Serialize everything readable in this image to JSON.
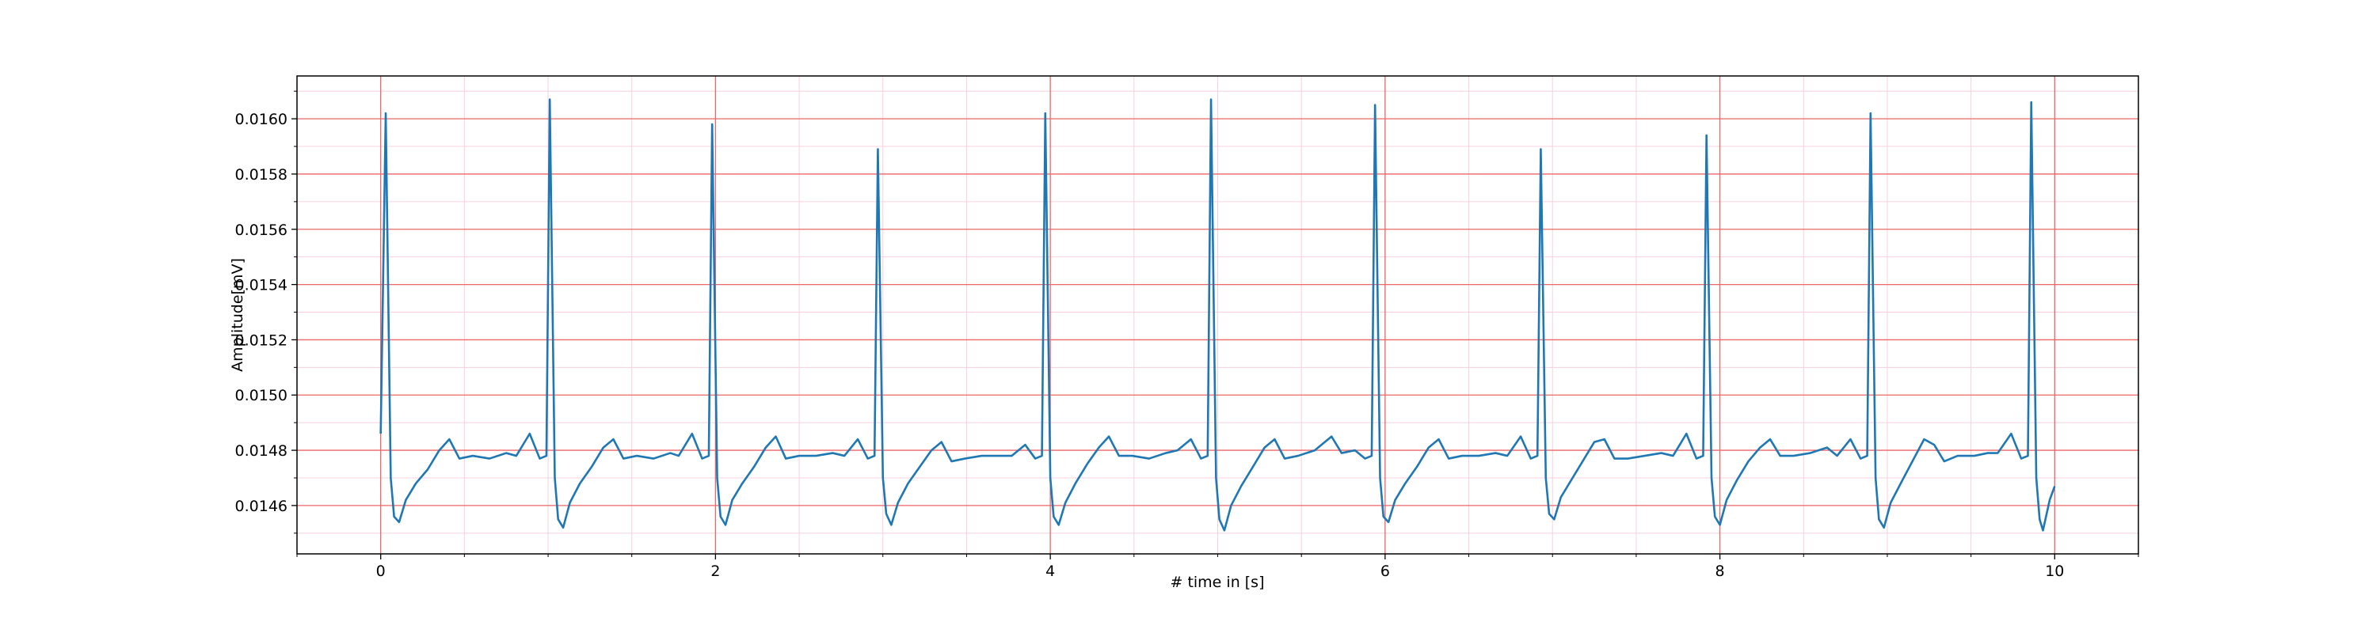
{
  "chart_data": {
    "type": "line",
    "xlabel": "# time in [s]",
    "ylabel": "Amplitude[mV]",
    "color": "#1f77b4",
    "xlim": [
      -0.5,
      10.5
    ],
    "ylim": [
      0.014425,
      0.016155
    ],
    "xticks": [
      0,
      2,
      4,
      6,
      8,
      10
    ],
    "yticks": [
      0.0146,
      0.0148,
      {
        "value": 0.015,
        "label": "0.0150"
      },
      0.0152,
      0.0154,
      0.0156,
      0.0158,
      {
        "value": 0.016,
        "label": "0.0160"
      }
    ],
    "xminorticks": [
      -0.5,
      0.5,
      1,
      1.5,
      2.5,
      3,
      3.5,
      4.5,
      5,
      5.5,
      6.5,
      7,
      7.5,
      8.5,
      9,
      9.5,
      10.5
    ],
    "yminorticks": [
      0.0145,
      0.0147,
      0.0149,
      0.0151,
      0.0153,
      0.0155,
      0.0157,
      0.0159,
      0.0161
    ],
    "grid": true,
    "minor_grid": true,
    "grid_color": "#ee6666",
    "minor_grid_color": "#f8d0dc",
    "x": [
      0,
      0.03,
      0.06,
      0.08,
      0.11,
      0.15,
      0.21,
      0.28,
      0.35,
      0.41,
      0.47,
      0.55,
      0.65,
      0.75,
      0.81,
      0.89,
      0.95,
      0.99,
      1.01,
      1.04,
      1.06,
      1.09,
      1.13,
      1.19,
      1.26,
      1.33,
      1.39,
      1.45,
      1.53,
      1.63,
      1.73,
      1.78,
      1.86,
      1.92,
      1.96,
      1.98,
      2.01,
      2.03,
      2.06,
      2.1,
      2.16,
      2.23,
      2.3,
      2.36,
      2.42,
      2.5,
      2.6,
      2.7,
      2.77,
      2.85,
      2.91,
      2.95,
      2.97,
      3.0,
      3.02,
      3.05,
      3.09,
      3.15,
      3.22,
      3.29,
      3.35,
      3.41,
      3.49,
      3.59,
      3.69,
      3.77,
      3.85,
      3.91,
      3.95,
      3.97,
      4.0,
      4.02,
      4.05,
      4.09,
      4.15,
      4.22,
      4.29,
      4.35,
      4.41,
      4.49,
      4.59,
      4.69,
      4.76,
      4.84,
      4.9,
      4.94,
      4.96,
      4.99,
      5.01,
      5.04,
      5.08,
      5.14,
      5.21,
      5.28,
      5.34,
      5.4,
      5.48,
      5.58,
      5.68,
      5.74,
      5.82,
      5.88,
      5.92,
      5.94,
      5.97,
      5.99,
      6.02,
      6.06,
      6.12,
      6.19,
      6.26,
      6.32,
      6.38,
      6.46,
      6.56,
      6.66,
      6.73,
      6.81,
      6.87,
      6.91,
      6.93,
      6.96,
      6.98,
      7.01,
      7.05,
      7.11,
      7.18,
      7.25,
      7.31,
      7.37,
      7.45,
      7.55,
      7.65,
      7.72,
      7.8,
      7.86,
      7.9,
      7.92,
      7.95,
      7.97,
      8.0,
      8.04,
      8.1,
      8.17,
      8.24,
      8.3,
      8.36,
      8.44,
      8.54,
      8.64,
      8.7,
      8.78,
      8.84,
      8.88,
      8.9,
      8.93,
      8.95,
      8.98,
      9.02,
      9.08,
      9.15,
      9.22,
      9.28,
      9.34,
      9.42,
      9.52,
      9.6,
      9.66,
      9.74,
      9.8,
      9.84,
      9.86,
      9.89,
      9.91,
      9.93,
      9.97,
      10.0
    ],
    "values": [
      0.01486,
      0.01602,
      0.0147,
      0.01456,
      0.01454,
      0.01462,
      0.01468,
      0.01473,
      0.0148,
      0.01484,
      0.01477,
      0.01478,
      0.01477,
      0.01479,
      0.01478,
      0.01486,
      0.01477,
      0.01478,
      0.01607,
      0.0147,
      0.01455,
      0.01452,
      0.01461,
      0.01468,
      0.01474,
      0.01481,
      0.01484,
      0.01477,
      0.01478,
      0.01477,
      0.01479,
      0.01478,
      0.01486,
      0.01477,
      0.01478,
      0.01598,
      0.0147,
      0.01456,
      0.01453,
      0.01462,
      0.01468,
      0.01474,
      0.01481,
      0.01485,
      0.01477,
      0.01478,
      0.01478,
      0.01479,
      0.01478,
      0.01484,
      0.01477,
      0.01478,
      0.01589,
      0.0147,
      0.01457,
      0.01453,
      0.01461,
      0.01468,
      0.01474,
      0.0148,
      0.01483,
      0.01476,
      0.01477,
      0.01478,
      0.01478,
      0.01478,
      0.01482,
      0.01477,
      0.01478,
      0.01602,
      0.0147,
      0.01456,
      0.01453,
      0.01461,
      0.01468,
      0.01475,
      0.01481,
      0.01485,
      0.01478,
      0.01478,
      0.01477,
      0.01479,
      0.0148,
      0.01484,
      0.01477,
      0.01478,
      0.01607,
      0.0147,
      0.01455,
      0.01451,
      0.0146,
      0.01467,
      0.01474,
      0.01481,
      0.01484,
      0.01477,
      0.01478,
      0.0148,
      0.01485,
      0.01479,
      0.0148,
      0.01477,
      0.01478,
      0.01605,
      0.0147,
      0.01456,
      0.01454,
      0.01462,
      0.01468,
      0.01474,
      0.01481,
      0.01484,
      0.01477,
      0.01478,
      0.01478,
      0.01479,
      0.01478,
      0.01485,
      0.01477,
      0.01478,
      0.01589,
      0.0147,
      0.01457,
      0.01455,
      0.01463,
      0.01469,
      0.01476,
      0.01483,
      0.01484,
      0.01477,
      0.01477,
      0.01478,
      0.01479,
      0.01478,
      0.01486,
      0.01477,
      0.01478,
      0.01594,
      0.0147,
      0.01456,
      0.01453,
      0.01462,
      0.01469,
      0.01476,
      0.01481,
      0.01484,
      0.01478,
      0.01478,
      0.01479,
      0.01481,
      0.01478,
      0.01484,
      0.01477,
      0.01478,
      0.01602,
      0.0147,
      0.01455,
      0.01452,
      0.01461,
      0.01468,
      0.01476,
      0.01484,
      0.01482,
      0.01476,
      0.01478,
      0.01478,
      0.01479,
      0.01479,
      0.01486,
      0.01477,
      0.01478,
      0.01606,
      0.0147,
      0.01455,
      0.01451,
      0.01462,
      0.01467
    ]
  }
}
